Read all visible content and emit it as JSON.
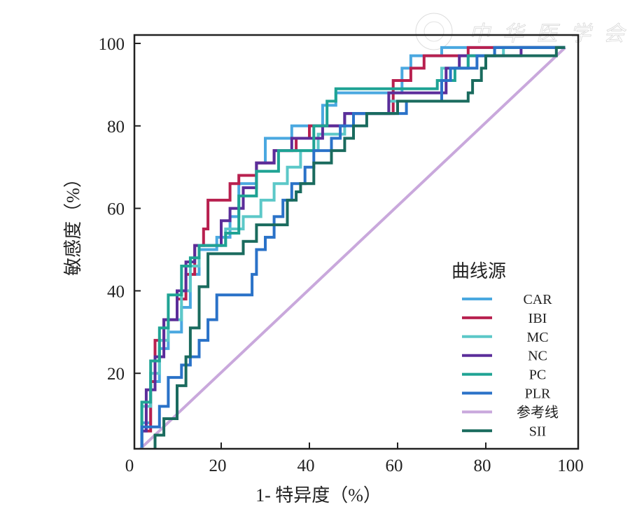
{
  "watermark": "中华医学会",
  "chart_data": {
    "type": "line",
    "title": "",
    "xlabel": "1- 特异度（%）",
    "ylabel": "敏感度（%）",
    "xlim": [
      0,
      101
    ],
    "ylim": [
      1.7,
      102
    ],
    "xticks": [
      "0",
      "20",
      "40",
      "60",
      "80",
      "100"
    ],
    "xtick_values": [
      0,
      20,
      40,
      60,
      80,
      100
    ],
    "yticks": [
      "20",
      "40",
      "60",
      "80",
      "100"
    ],
    "ytick_values": [
      20,
      40,
      60,
      80,
      100
    ],
    "grid": false,
    "legend": {
      "title": "曲线源",
      "placement": "bottom-right"
    },
    "series": [
      {
        "name": "CAR",
        "color": "#4aa8e0",
        "points": [
          [
            2,
            2
          ],
          [
            2,
            8
          ],
          [
            4,
            8
          ],
          [
            4,
            18
          ],
          [
            6,
            18
          ],
          [
            6,
            26
          ],
          [
            8,
            26
          ],
          [
            8,
            30
          ],
          [
            11,
            30
          ],
          [
            11,
            36
          ],
          [
            13,
            36
          ],
          [
            13,
            44
          ],
          [
            15,
            44
          ],
          [
            15,
            50
          ],
          [
            19,
            50
          ],
          [
            19,
            53
          ],
          [
            22,
            53
          ],
          [
            22,
            58
          ],
          [
            24,
            58
          ],
          [
            24,
            66
          ],
          [
            28,
            66
          ],
          [
            28,
            71
          ],
          [
            30,
            71
          ],
          [
            30,
            77
          ],
          [
            36,
            77
          ],
          [
            36,
            80
          ],
          [
            43,
            80
          ],
          [
            43,
            85
          ],
          [
            46,
            85
          ],
          [
            46,
            88
          ],
          [
            61,
            88
          ],
          [
            61,
            94
          ],
          [
            63,
            94
          ],
          [
            63,
            97
          ],
          [
            70,
            97
          ],
          [
            70,
            99
          ],
          [
            98,
            99
          ]
        ]
      },
      {
        "name": "IBI",
        "color": "#b8204f",
        "points": [
          [
            2,
            2
          ],
          [
            2,
            6
          ],
          [
            4,
            6
          ],
          [
            4,
            18
          ],
          [
            5,
            18
          ],
          [
            5,
            28
          ],
          [
            7,
            28
          ],
          [
            7,
            33
          ],
          [
            10,
            33
          ],
          [
            10,
            38
          ],
          [
            12,
            38
          ],
          [
            12,
            44
          ],
          [
            14,
            44
          ],
          [
            14,
            51
          ],
          [
            16,
            51
          ],
          [
            16,
            55
          ],
          [
            17,
            55
          ],
          [
            17,
            62
          ],
          [
            22,
            62
          ],
          [
            22,
            66
          ],
          [
            24,
            66
          ],
          [
            24,
            68
          ],
          [
            28,
            68
          ],
          [
            28,
            71
          ],
          [
            32,
            71
          ],
          [
            32,
            74
          ],
          [
            37,
            74
          ],
          [
            37,
            77
          ],
          [
            40,
            77
          ],
          [
            40,
            80
          ],
          [
            48,
            80
          ],
          [
            48,
            83
          ],
          [
            59,
            83
          ],
          [
            59,
            91
          ],
          [
            63,
            91
          ],
          [
            63,
            94
          ],
          [
            66,
            94
          ],
          [
            66,
            97
          ],
          [
            76,
            97
          ],
          [
            76,
            99
          ],
          [
            98,
            99
          ]
        ]
      },
      {
        "name": "MC",
        "color": "#5cc8c8",
        "points": [
          [
            2,
            2
          ],
          [
            2,
            12
          ],
          [
            4,
            12
          ],
          [
            4,
            20
          ],
          [
            6,
            20
          ],
          [
            6,
            28
          ],
          [
            8,
            28
          ],
          [
            8,
            33
          ],
          [
            11,
            33
          ],
          [
            11,
            40
          ],
          [
            13,
            40
          ],
          [
            13,
            46
          ],
          [
            15,
            46
          ],
          [
            15,
            51
          ],
          [
            21,
            51
          ],
          [
            21,
            55
          ],
          [
            25,
            55
          ],
          [
            25,
            58
          ],
          [
            29,
            58
          ],
          [
            29,
            62
          ],
          [
            32,
            62
          ],
          [
            32,
            66
          ],
          [
            35,
            66
          ],
          [
            35,
            70
          ],
          [
            38,
            70
          ],
          [
            38,
            74
          ],
          [
            42,
            74
          ],
          [
            42,
            78
          ],
          [
            48,
            78
          ],
          [
            48,
            83
          ],
          [
            58,
            83
          ],
          [
            58,
            86
          ],
          [
            70,
            86
          ],
          [
            70,
            94
          ],
          [
            76,
            94
          ],
          [
            76,
            97
          ],
          [
            84,
            97
          ],
          [
            84,
            99
          ],
          [
            98,
            99
          ]
        ]
      },
      {
        "name": "NC",
        "color": "#5b2d9a",
        "points": [
          [
            2,
            2
          ],
          [
            2,
            6
          ],
          [
            3,
            6
          ],
          [
            3,
            16
          ],
          [
            5,
            16
          ],
          [
            5,
            24
          ],
          [
            7,
            24
          ],
          [
            7,
            33
          ],
          [
            10,
            33
          ],
          [
            10,
            40
          ],
          [
            12,
            40
          ],
          [
            12,
            47
          ],
          [
            14,
            47
          ],
          [
            14,
            51
          ],
          [
            20,
            51
          ],
          [
            20,
            57
          ],
          [
            22,
            57
          ],
          [
            22,
            60
          ],
          [
            25,
            60
          ],
          [
            25,
            65
          ],
          [
            28,
            65
          ],
          [
            28,
            71
          ],
          [
            32,
            71
          ],
          [
            32,
            74
          ],
          [
            36,
            74
          ],
          [
            36,
            77
          ],
          [
            43,
            77
          ],
          [
            43,
            80
          ],
          [
            48,
            80
          ],
          [
            48,
            83
          ],
          [
            58,
            83
          ],
          [
            58,
            88
          ],
          [
            71,
            88
          ],
          [
            71,
            94
          ],
          [
            74,
            94
          ],
          [
            74,
            97
          ],
          [
            88,
            97
          ],
          [
            88,
            99
          ],
          [
            98,
            99
          ]
        ]
      },
      {
        "name": "PC",
        "color": "#1fa394",
        "points": [
          [
            2,
            2
          ],
          [
            2,
            13
          ],
          [
            4,
            13
          ],
          [
            4,
            23
          ],
          [
            6,
            23
          ],
          [
            6,
            31
          ],
          [
            8,
            31
          ],
          [
            8,
            39
          ],
          [
            11,
            39
          ],
          [
            11,
            46
          ],
          [
            13,
            46
          ],
          [
            13,
            48
          ],
          [
            15,
            48
          ],
          [
            15,
            51
          ],
          [
            21,
            51
          ],
          [
            21,
            54
          ],
          [
            24,
            54
          ],
          [
            24,
            63
          ],
          [
            28,
            63
          ],
          [
            28,
            69
          ],
          [
            33,
            69
          ],
          [
            33,
            74
          ],
          [
            41,
            74
          ],
          [
            41,
            80
          ],
          [
            44,
            80
          ],
          [
            44,
            86
          ],
          [
            46,
            86
          ],
          [
            46,
            89
          ],
          [
            69,
            89
          ],
          [
            69,
            91
          ],
          [
            73,
            91
          ],
          [
            73,
            94
          ],
          [
            76,
            94
          ],
          [
            76,
            97
          ],
          [
            82,
            97
          ],
          [
            82,
            99
          ],
          [
            98,
            99
          ]
        ]
      },
      {
        "name": "PLR",
        "color": "#2a72c8",
        "points": [
          [
            2,
            2
          ],
          [
            2,
            7
          ],
          [
            6,
            7
          ],
          [
            6,
            12
          ],
          [
            8,
            12
          ],
          [
            8,
            19
          ],
          [
            11,
            19
          ],
          [
            11,
            22
          ],
          [
            13,
            22
          ],
          [
            13,
            24
          ],
          [
            15,
            24
          ],
          [
            15,
            28
          ],
          [
            17,
            28
          ],
          [
            17,
            33
          ],
          [
            19,
            33
          ],
          [
            19,
            39
          ],
          [
            27,
            39
          ],
          [
            27,
            44
          ],
          [
            28,
            44
          ],
          [
            28,
            50
          ],
          [
            30,
            50
          ],
          [
            30,
            53
          ],
          [
            32,
            53
          ],
          [
            32,
            58
          ],
          [
            34,
            58
          ],
          [
            34,
            62
          ],
          [
            36,
            62
          ],
          [
            36,
            66
          ],
          [
            39,
            66
          ],
          [
            39,
            70
          ],
          [
            41,
            70
          ],
          [
            41,
            74
          ],
          [
            45,
            74
          ],
          [
            45,
            77
          ],
          [
            47,
            77
          ],
          [
            47,
            80
          ],
          [
            50,
            80
          ],
          [
            50,
            83
          ],
          [
            62,
            83
          ],
          [
            62,
            86
          ],
          [
            70,
            86
          ],
          [
            70,
            91
          ],
          [
            72,
            91
          ],
          [
            72,
            94
          ],
          [
            78,
            94
          ],
          [
            78,
            97
          ],
          [
            82,
            97
          ],
          [
            82,
            99
          ],
          [
            98,
            99
          ]
        ]
      },
      {
        "name": "参考线",
        "color": "#c9a8dc",
        "points": [
          [
            0,
            0
          ],
          [
            98,
            99
          ]
        ]
      },
      {
        "name": "SII",
        "color": "#1a6b5e",
        "points": [
          [
            5,
            0
          ],
          [
            5,
            5
          ],
          [
            7,
            5
          ],
          [
            7,
            9
          ],
          [
            10,
            9
          ],
          [
            10,
            17
          ],
          [
            12,
            17
          ],
          [
            12,
            24
          ],
          [
            13,
            24
          ],
          [
            13,
            31
          ],
          [
            15,
            31
          ],
          [
            15,
            41
          ],
          [
            17,
            41
          ],
          [
            17,
            49
          ],
          [
            25,
            49
          ],
          [
            25,
            52
          ],
          [
            28,
            52
          ],
          [
            28,
            56
          ],
          [
            35,
            56
          ],
          [
            35,
            62
          ],
          [
            37,
            62
          ],
          [
            37,
            64
          ],
          [
            38,
            64
          ],
          [
            38,
            66
          ],
          [
            41,
            66
          ],
          [
            41,
            71
          ],
          [
            45,
            71
          ],
          [
            45,
            74
          ],
          [
            48,
            74
          ],
          [
            48,
            77
          ],
          [
            50,
            77
          ],
          [
            50,
            80
          ],
          [
            53,
            80
          ],
          [
            53,
            83
          ],
          [
            60,
            83
          ],
          [
            60,
            86
          ],
          [
            76,
            86
          ],
          [
            76,
            88
          ],
          [
            77,
            88
          ],
          [
            77,
            91
          ],
          [
            79,
            91
          ],
          [
            79,
            94
          ],
          [
            80,
            94
          ],
          [
            80,
            97
          ],
          [
            96,
            97
          ],
          [
            96,
            99
          ],
          [
            98,
            99
          ]
        ]
      }
    ]
  }
}
